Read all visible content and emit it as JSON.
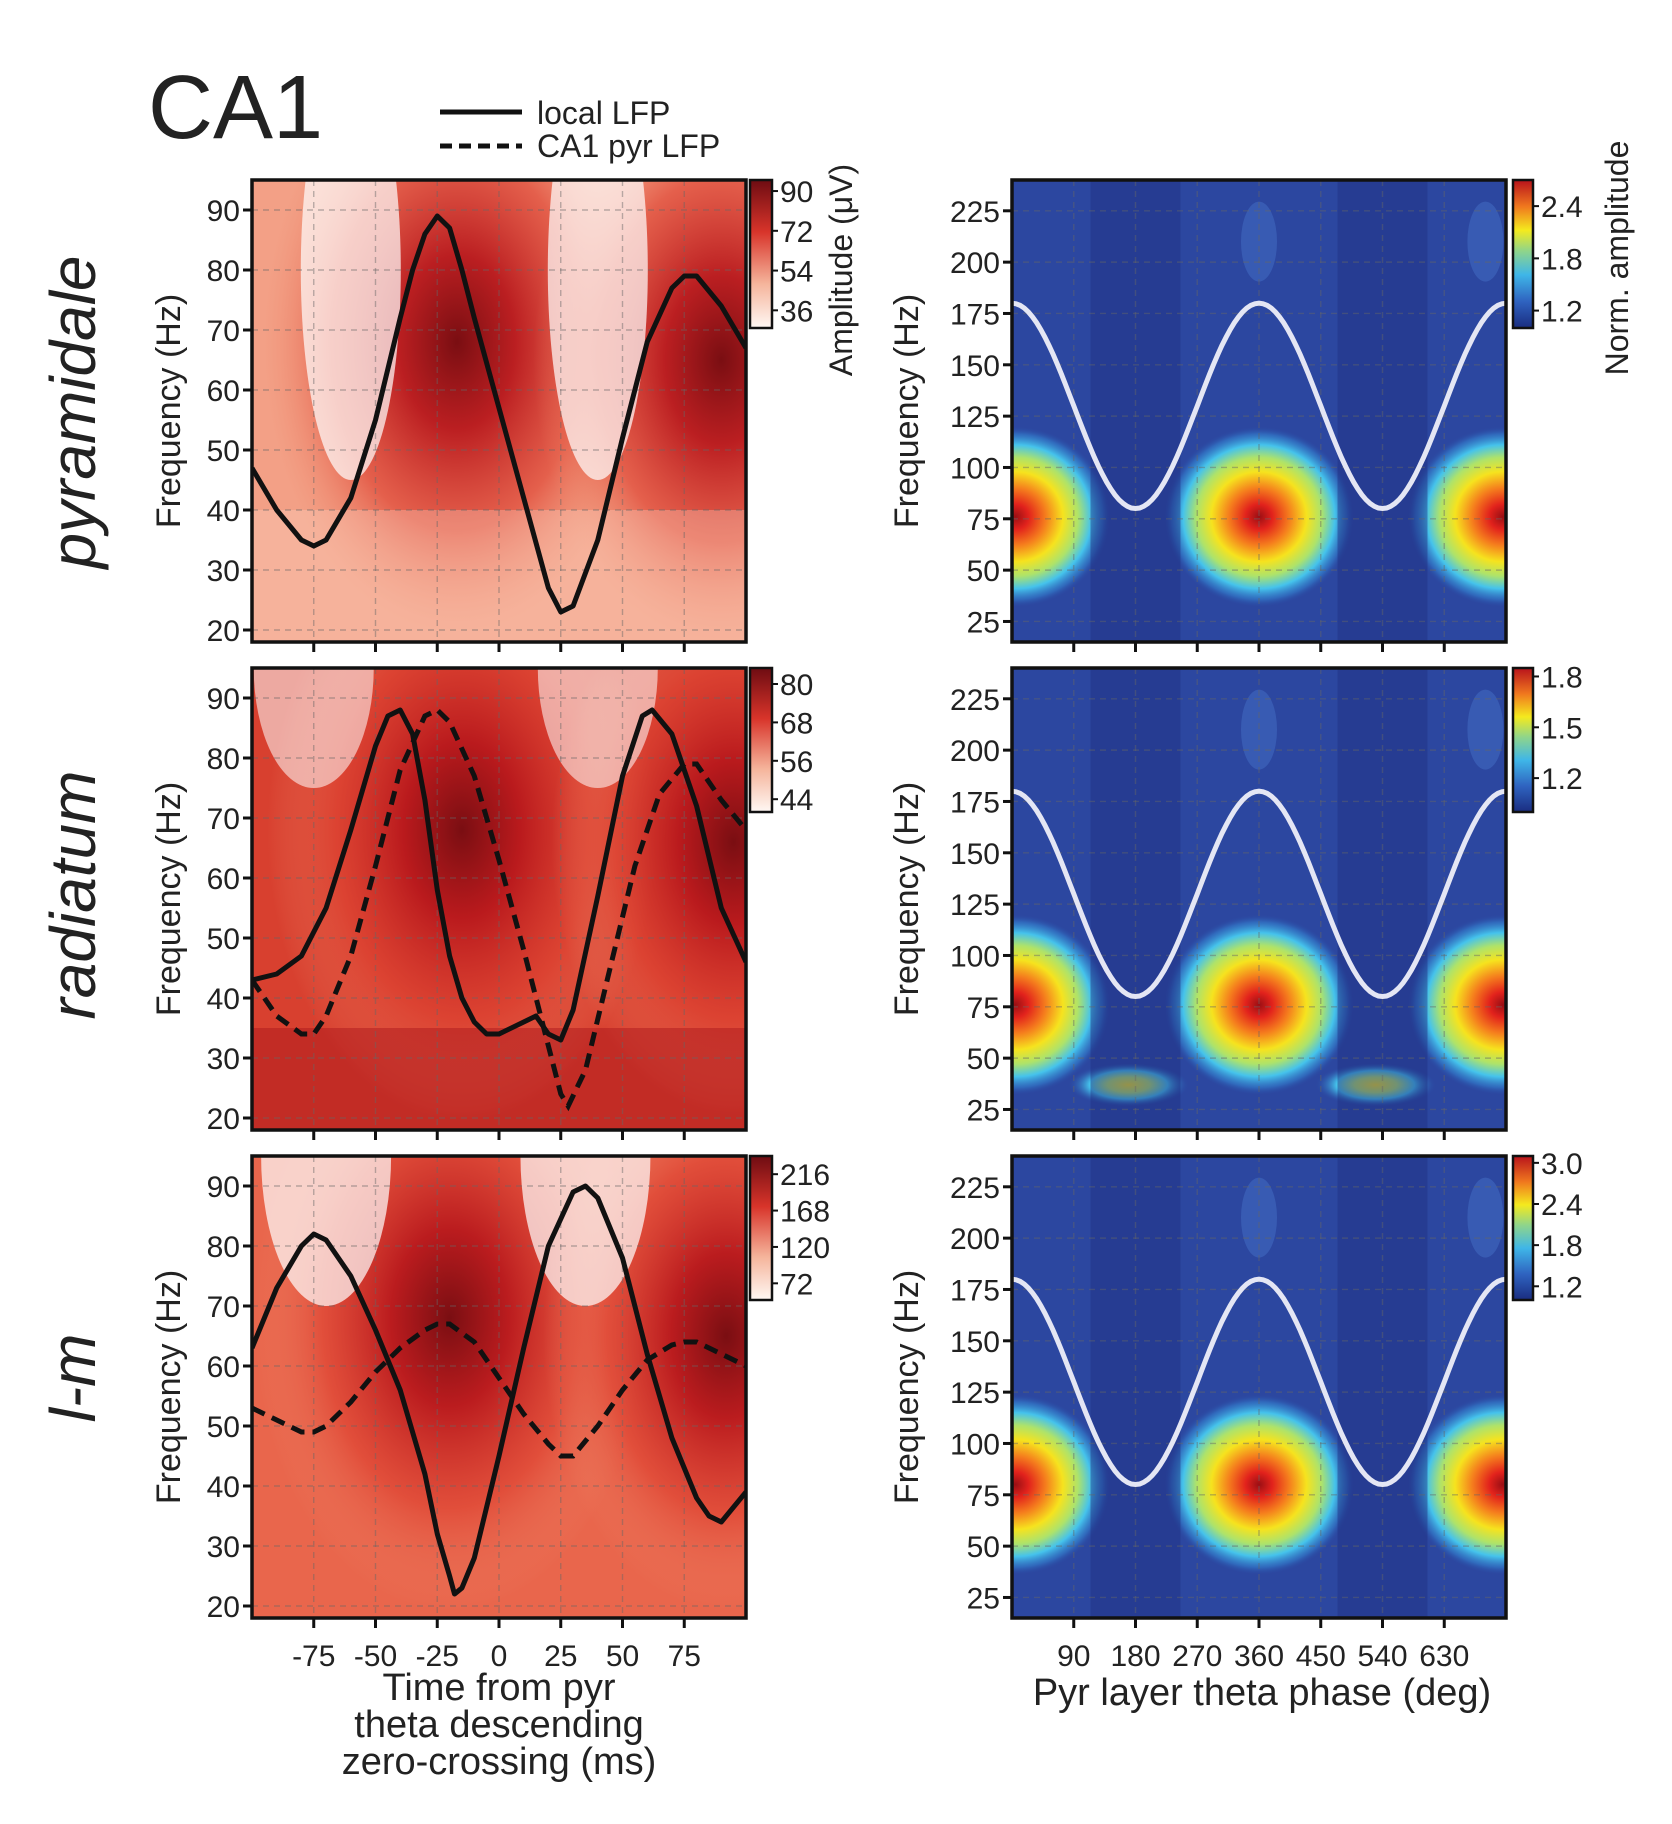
{
  "figure": {
    "title": "CA1",
    "legend": {
      "solid": "local LFP",
      "dashed": "CA1 pyr LFP"
    },
    "row_labels": [
      "pyramidale",
      "radiatum",
      "l-m"
    ],
    "left_colorbar_label": "Amplitude (μV)",
    "right_colorbar_label": "Norm. amplitude"
  },
  "chart_data": [
    {
      "type": "heatmap",
      "id": "L0",
      "row": "pyramidale",
      "xlabel": "",
      "ylabel": "Frequency (Hz)",
      "xlim": [
        -100,
        100
      ],
      "ylim": [
        18,
        95
      ],
      "xticks": [
        -75,
        -50,
        -25,
        0,
        25,
        50,
        75
      ],
      "yticks": [
        20,
        30,
        40,
        50,
        60,
        70,
        80,
        90
      ],
      "colorbar": {
        "ticks": [
          "90",
          "72",
          "54",
          "36"
        ],
        "range": [
          28,
          95
        ]
      },
      "hotspots": [
        {
          "x": -17,
          "y": 68,
          "amp": 90
        },
        {
          "x": 90,
          "y": 65,
          "amp": 85
        }
      ],
      "local_lfp": [
        [
          -100,
          47
        ],
        [
          -90,
          40
        ],
        [
          -80,
          35
        ],
        [
          -75,
          34
        ],
        [
          -70,
          35
        ],
        [
          -60,
          42
        ],
        [
          -50,
          55
        ],
        [
          -40,
          72
        ],
        [
          -35,
          80
        ],
        [
          -30,
          86
        ],
        [
          -25,
          89
        ],
        [
          -20,
          87
        ],
        [
          -15,
          80
        ],
        [
          -10,
          72
        ],
        [
          0,
          57
        ],
        [
          10,
          42
        ],
        [
          20,
          27
        ],
        [
          25,
          23
        ],
        [
          30,
          24
        ],
        [
          40,
          35
        ],
        [
          50,
          52
        ],
        [
          60,
          68
        ],
        [
          70,
          77
        ],
        [
          75,
          79
        ],
        [
          80,
          79
        ],
        [
          90,
          74
        ],
        [
          100,
          67
        ]
      ]
    },
    {
      "type": "heatmap",
      "id": "L1",
      "row": "radiatum",
      "xlabel": "",
      "ylabel": "Frequency (Hz)",
      "xlim": [
        -100,
        100
      ],
      "ylim": [
        18,
        95
      ],
      "xticks": [
        -75,
        -50,
        -25,
        0,
        25,
        50,
        75
      ],
      "yticks": [
        20,
        30,
        40,
        50,
        60,
        70,
        80,
        90
      ],
      "colorbar": {
        "ticks": [
          "80",
          "68",
          "56",
          "44"
        ],
        "range": [
          40,
          85
        ]
      },
      "hotspots": [
        {
          "x": -15,
          "y": 68,
          "amp": 82
        },
        {
          "x": 95,
          "y": 66,
          "amp": 75
        }
      ],
      "local_lfp": [
        [
          -100,
          43
        ],
        [
          -90,
          44
        ],
        [
          -80,
          47
        ],
        [
          -70,
          55
        ],
        [
          -60,
          68
        ],
        [
          -50,
          82
        ],
        [
          -45,
          87
        ],
        [
          -40,
          88
        ],
        [
          -35,
          84
        ],
        [
          -30,
          73
        ],
        [
          -25,
          58
        ],
        [
          -20,
          47
        ],
        [
          -15,
          40
        ],
        [
          -10,
          36
        ],
        [
          -5,
          34
        ],
        [
          0,
          34
        ],
        [
          10,
          36
        ],
        [
          15,
          37
        ],
        [
          20,
          34
        ],
        [
          25,
          33
        ],
        [
          30,
          38
        ],
        [
          40,
          57
        ],
        [
          50,
          77
        ],
        [
          58,
          87
        ],
        [
          62,
          88
        ],
        [
          70,
          84
        ],
        [
          80,
          72
        ],
        [
          90,
          55
        ],
        [
          100,
          46
        ]
      ],
      "pyr_lfp": [
        [
          -100,
          43
        ],
        [
          -90,
          37
        ],
        [
          -80,
          34
        ],
        [
          -75,
          34
        ],
        [
          -70,
          37
        ],
        [
          -60,
          47
        ],
        [
          -50,
          62
        ],
        [
          -40,
          78
        ],
        [
          -30,
          87
        ],
        [
          -25,
          88
        ],
        [
          -20,
          86
        ],
        [
          -10,
          77
        ],
        [
          0,
          63
        ],
        [
          10,
          48
        ],
        [
          20,
          32
        ],
        [
          25,
          24
        ],
        [
          28,
          22
        ],
        [
          35,
          28
        ],
        [
          45,
          45
        ],
        [
          55,
          62
        ],
        [
          65,
          74
        ],
        [
          75,
          79
        ],
        [
          80,
          79
        ],
        [
          90,
          73
        ],
        [
          100,
          68
        ]
      ]
    },
    {
      "type": "heatmap",
      "id": "L2",
      "row": "l-m",
      "xlabel": "Time from pyr theta descending zero-crossing (ms)",
      "ylabel": "Frequency (Hz)",
      "xlim": [
        -100,
        100
      ],
      "ylim": [
        18,
        95
      ],
      "xticks": [
        -75,
        -50,
        -25,
        0,
        25,
        50,
        75
      ],
      "yticks": [
        20,
        30,
        40,
        50,
        60,
        70,
        80,
        90
      ],
      "xlabel_lines": [
        "Time from pyr",
        "theta descending",
        "zero-crossing (ms)"
      ],
      "colorbar": {
        "ticks": [
          "216",
          "168",
          "120",
          "72"
        ],
        "range": [
          50,
          240
        ]
      },
      "hotspots": [
        {
          "x": -20,
          "y": 68,
          "amp": 230
        },
        {
          "x": 92,
          "y": 65,
          "amp": 200
        }
      ],
      "local_lfp": [
        [
          -100,
          63
        ],
        [
          -90,
          73
        ],
        [
          -80,
          80
        ],
        [
          -75,
          82
        ],
        [
          -70,
          81
        ],
        [
          -60,
          75
        ],
        [
          -50,
          66
        ],
        [
          -40,
          56
        ],
        [
          -30,
          42
        ],
        [
          -25,
          32
        ],
        [
          -20,
          25
        ],
        [
          -18,
          22
        ],
        [
          -15,
          23
        ],
        [
          -10,
          28
        ],
        [
          0,
          45
        ],
        [
          10,
          63
        ],
        [
          20,
          80
        ],
        [
          30,
          89
        ],
        [
          35,
          90
        ],
        [
          40,
          88
        ],
        [
          50,
          78
        ],
        [
          60,
          62
        ],
        [
          70,
          48
        ],
        [
          80,
          38
        ],
        [
          85,
          35
        ],
        [
          90,
          34
        ],
        [
          100,
          39
        ]
      ],
      "pyr_lfp": [
        [
          -100,
          53
        ],
        [
          -90,
          51
        ],
        [
          -80,
          49
        ],
        [
          -75,
          49
        ],
        [
          -70,
          50
        ],
        [
          -60,
          54
        ],
        [
          -50,
          59
        ],
        [
          -40,
          63
        ],
        [
          -30,
          66
        ],
        [
          -25,
          67
        ],
        [
          -20,
          67
        ],
        [
          -10,
          64
        ],
        [
          0,
          58
        ],
        [
          10,
          52
        ],
        [
          20,
          47
        ],
        [
          25,
          45
        ],
        [
          30,
          45
        ],
        [
          40,
          50
        ],
        [
          50,
          56
        ],
        [
          60,
          61
        ],
        [
          70,
          63.5
        ],
        [
          75,
          64
        ],
        [
          80,
          64
        ],
        [
          90,
          62
        ],
        [
          100,
          60
        ]
      ]
    },
    {
      "type": "heatmap",
      "id": "R0",
      "row": "pyramidale",
      "xlabel": "",
      "ylabel": "Frequency (Hz)",
      "xlim": [
        0,
        720
      ],
      "ylim": [
        15,
        240
      ],
      "xticks": [
        90,
        180,
        270,
        360,
        450,
        540,
        630
      ],
      "yticks": [
        25,
        50,
        75,
        100,
        125,
        150,
        175,
        200,
        225
      ],
      "colorbar": {
        "ticks": [
          "2.4",
          "1.8",
          "1.2"
        ],
        "range": [
          1.0,
          2.7
        ]
      },
      "hotspots": [
        {
          "x": 5,
          "y": 76,
          "amp": 2.6
        },
        {
          "x": 360,
          "y": 76,
          "amp": 2.6
        },
        {
          "x": 715,
          "y": 76,
          "amp": 2.6
        }
      ],
      "theta": {
        "center": 130,
        "amplitude": 50
      }
    },
    {
      "type": "heatmap",
      "id": "R1",
      "row": "radiatum",
      "xlabel": "",
      "ylabel": "Frequency (Hz)",
      "xlim": [
        0,
        720
      ],
      "ylim": [
        15,
        240
      ],
      "xticks": [
        90,
        180,
        270,
        360,
        450,
        540,
        630
      ],
      "yticks": [
        25,
        50,
        75,
        100,
        125,
        150,
        175,
        200,
        225
      ],
      "colorbar": {
        "ticks": [
          "1.8",
          "1.5",
          "1.2"
        ],
        "range": [
          1.0,
          1.85
        ]
      },
      "hotspots": [
        {
          "x": 5,
          "y": 76,
          "amp": 1.8
        },
        {
          "x": 360,
          "y": 76,
          "amp": 1.8
        },
        {
          "x": 715,
          "y": 76,
          "amp": 1.8
        },
        {
          "x": 170,
          "y": 37,
          "amp": 1.4
        },
        {
          "x": 530,
          "y": 37,
          "amp": 1.4
        }
      ],
      "theta": {
        "center": 130,
        "amplitude": 50
      }
    },
    {
      "type": "heatmap",
      "id": "R2",
      "row": "l-m",
      "xlabel": "Pyr layer theta phase (deg)",
      "ylabel": "Frequency (Hz)",
      "xlim": [
        0,
        720
      ],
      "ylim": [
        15,
        240
      ],
      "xticks": [
        90,
        180,
        270,
        360,
        450,
        540,
        630
      ],
      "yticks": [
        25,
        50,
        75,
        100,
        125,
        150,
        175,
        200,
        225
      ],
      "colorbar": {
        "ticks": [
          "3.0",
          "2.4",
          "1.8",
          "1.2"
        ],
        "range": [
          1.0,
          3.1
        ]
      },
      "hotspots": [
        {
          "x": 5,
          "y": 80,
          "amp": 3.0
        },
        {
          "x": 360,
          "y": 80,
          "amp": 3.0
        },
        {
          "x": 715,
          "y": 80,
          "amp": 3.0
        }
      ],
      "theta": {
        "center": 130,
        "amplitude": 50
      }
    }
  ]
}
